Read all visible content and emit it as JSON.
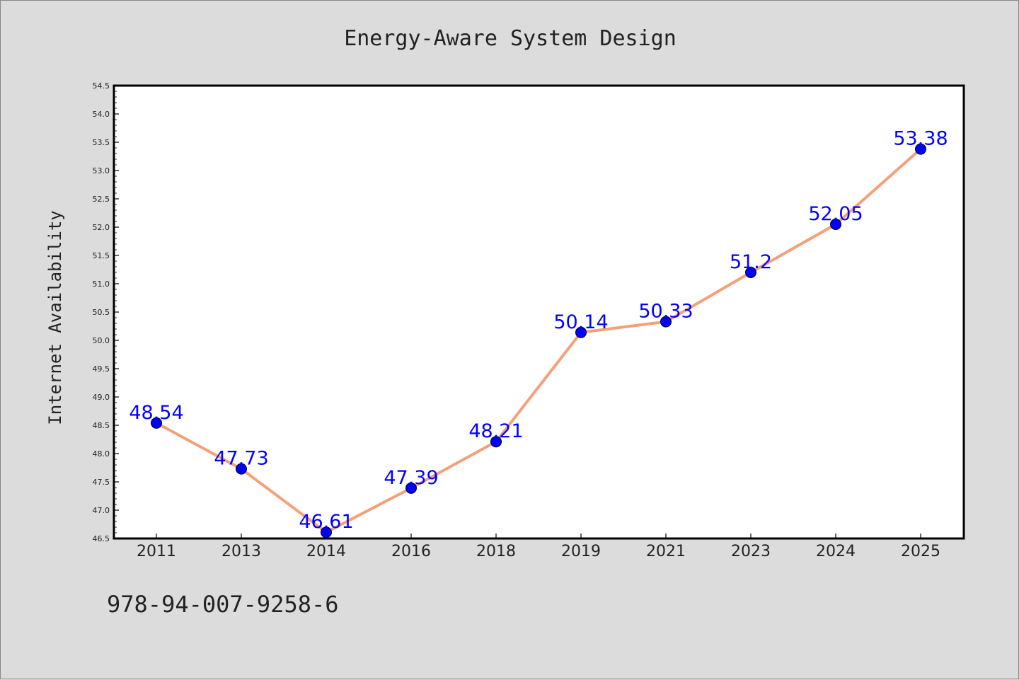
{
  "chart_data": {
    "type": "line",
    "title": "Energy-Aware System Design",
    "xlabel": "",
    "ylabel": "Internet Availability",
    "categories": [
      "2011",
      "2013",
      "2014",
      "2016",
      "2018",
      "2019",
      "2021",
      "2023",
      "2024",
      "2025"
    ],
    "series": [
      {
        "values": [
          48.54,
          47.73,
          46.61,
          47.39,
          48.21,
          50.14,
          50.33,
          51.2,
          52.05,
          53.38
        ],
        "labels": [
          "48.54",
          "47.73",
          "46.61",
          "47.39",
          "48.21",
          "50.14",
          "50.33",
          "51.2",
          "52.05",
          "53.38"
        ]
      }
    ],
    "ylim": [
      46.5,
      54.5
    ],
    "yticks": [
      "46.5",
      "47.0",
      "47.5",
      "48.0",
      "48.5",
      "49.0",
      "49.5",
      "50.0",
      "50.5",
      "51.0",
      "51.5",
      "52.0",
      "52.5",
      "53.0",
      "53.5",
      "54.0",
      "54.5"
    ],
    "grid": false,
    "legend": "none",
    "colors": {
      "background": "#dcdcdc",
      "plot_area": "#ffffff",
      "line": "#f4a07a",
      "marker": "#0000ff",
      "data_label": "#0000ff",
      "text": "#222222"
    }
  },
  "footer": {
    "isbn": "978-94-007-9258-6"
  }
}
